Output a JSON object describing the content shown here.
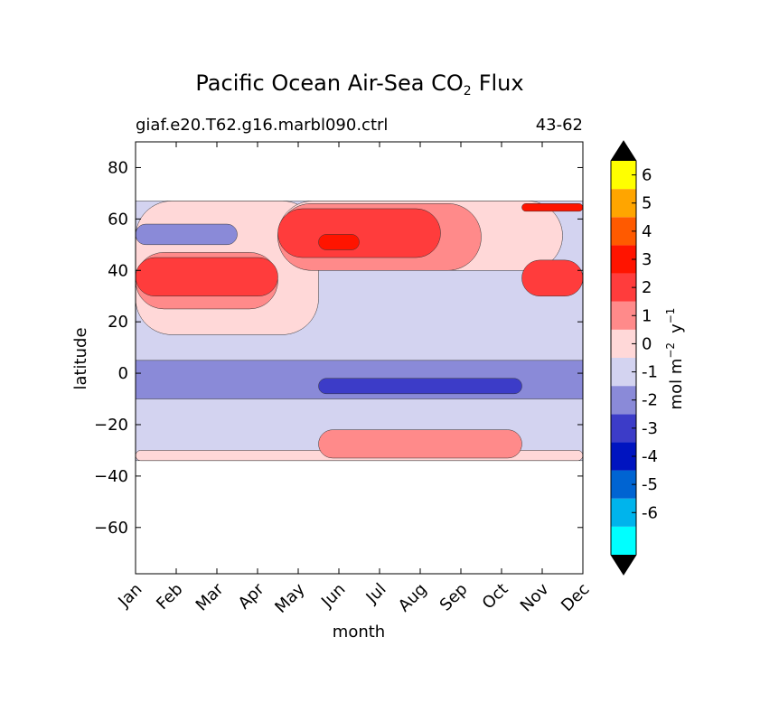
{
  "chart_data": {
    "type": "heatmap",
    "title": "Pacific Ocean Air-Sea CO",
    "title_subscript": "2",
    "title_suffix": "Flux",
    "subtitle_left": "giaf.e20.T62.g16.marbl090.ctrl",
    "subtitle_right": "43-62",
    "xlabel": "month",
    "ylabel": "latitude",
    "x_tick_labels": [
      "Jan",
      "Feb",
      "Mar",
      "Apr",
      "May",
      "Jun",
      "Jul",
      "Aug",
      "Sep",
      "Oct",
      "Nov",
      "Dec"
    ],
    "x_tick_values": [
      1,
      2,
      3,
      4,
      5,
      6,
      7,
      8,
      9,
      10,
      11,
      12
    ],
    "xlim": [
      1,
      12
    ],
    "y_tick_values": [
      80,
      60,
      40,
      20,
      0,
      -20,
      -40,
      -60
    ],
    "y_tick_labels": [
      "80",
      "60",
      "40",
      "20",
      "0",
      "−20",
      "−40",
      "−60"
    ],
    "ylim": [
      -78,
      90
    ],
    "data_lat_range": [
      -34,
      67
    ],
    "colorbar": {
      "label": "mol m",
      "label_sup1": "−2",
      "label_mid": "y",
      "label_sup2": "−1",
      "levels": [
        -7,
        -6,
        -5,
        -4,
        -3,
        -2,
        -1,
        0,
        1,
        2,
        3,
        4,
        5,
        6,
        7
      ],
      "tick_labels": [
        "-6",
        "-5",
        "-4",
        "-3",
        "-2",
        "-1",
        "0",
        "1",
        "2",
        "3",
        "4",
        "5",
        "6"
      ],
      "tick_values": [
        -6,
        -5,
        -4,
        -3,
        -2,
        -1,
        0,
        1,
        2,
        3,
        4,
        5,
        6
      ],
      "colors": [
        "#00ffff",
        "#00b4ec",
        "#0064d2",
        "#0014c0",
        "#3c3cc8",
        "#8a8ad8",
        "#d3d3f0",
        "#ffd8d8",
        "#ff8a8a",
        "#ff3c3c",
        "#ff1400",
        "#ff5a00",
        "#ffa500",
        "#ffff00"
      ],
      "extend": "both",
      "extend_color": "#000000"
    },
    "bands": [
      {
        "lat_min": -34,
        "lat_max": 67,
        "value": -0.5
      },
      {
        "lat_min": -34,
        "lat_max": -30,
        "months": [
          1,
          12
        ],
        "value": 0.5
      },
      {
        "lat_min": -33,
        "lat_max": -22,
        "months": [
          6,
          10
        ],
        "value": 1.5
      },
      {
        "lat_min": -10,
        "lat_max": 5,
        "value": -1.5
      },
      {
        "lat_min": -8,
        "lat_max": -2,
        "months": [
          6,
          10
        ],
        "value": -2.5
      },
      {
        "lat_min": 15,
        "lat_max": 67,
        "months": [
          1,
          5
        ],
        "value": 0.5
      },
      {
        "lat_min": 40,
        "lat_max": 67,
        "months": [
          5,
          11
        ],
        "value": 0.5
      },
      {
        "lat_min": 25,
        "lat_max": 47,
        "months": [
          1,
          4
        ],
        "value": 1.5
      },
      {
        "lat_min": 30,
        "lat_max": 45,
        "months": [
          1,
          4
        ],
        "value": 2.5
      },
      {
        "lat_min": 50,
        "lat_max": 58,
        "months": [
          1,
          3
        ],
        "value": -1.5
      },
      {
        "lat_min": 40,
        "lat_max": 66,
        "months": [
          5,
          9
        ],
        "value": 1.5
      },
      {
        "lat_min": 45,
        "lat_max": 64,
        "months": [
          5,
          8
        ],
        "value": 2.5
      },
      {
        "lat_min": 48,
        "lat_max": 54,
        "months": [
          6,
          6
        ],
        "value": 3.5
      },
      {
        "lat_min": 30,
        "lat_max": 44,
        "months": [
          11,
          12
        ],
        "value": 2.5
      },
      {
        "lat_min": 63,
        "lat_max": 66,
        "months": [
          11,
          12
        ],
        "value": 3.5
      }
    ]
  }
}
